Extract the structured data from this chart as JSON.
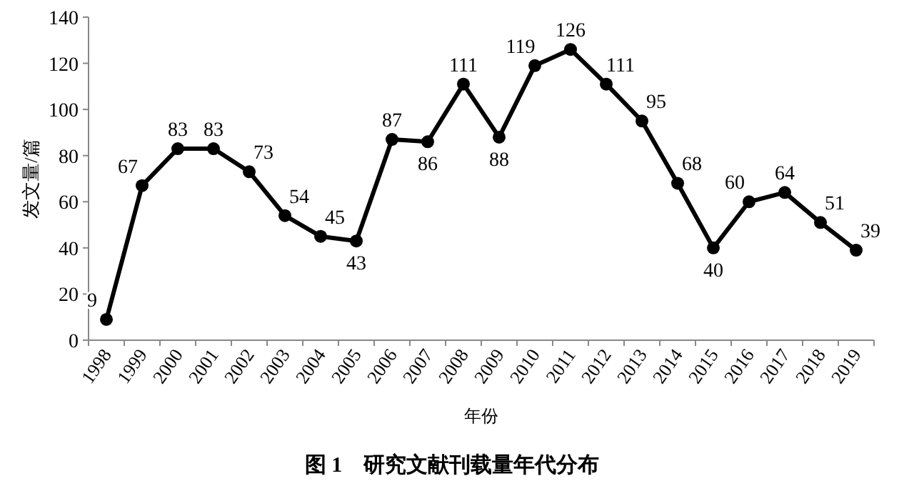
{
  "chart_data": {
    "type": "line",
    "title": "图 1　研究文献刊载量年代分布",
    "xlabel": "年份",
    "ylabel": "发文量/篇",
    "categories": [
      "1998",
      "1999",
      "2000",
      "2001",
      "2002",
      "2003",
      "2004",
      "2005",
      "2006",
      "2007",
      "2008",
      "2009",
      "2010",
      "2011",
      "2012",
      "2013",
      "2014",
      "2015",
      "2016",
      "2017",
      "2018",
      "2019"
    ],
    "series": [
      {
        "color": "#000000",
        "values": [
          9,
          67,
          83,
          83,
          73,
          54,
          45,
          43,
          87,
          86,
          111,
          88,
          119,
          126,
          111,
          95,
          68,
          40,
          60,
          64,
          51,
          39
        ]
      }
    ],
    "ylim": [
      0,
      140
    ],
    "yticks": [
      0,
      20,
      40,
      60,
      80,
      100,
      120,
      140
    ],
    "data_labels": true,
    "marker": "circle",
    "line_style": "solid",
    "grid": false
  }
}
